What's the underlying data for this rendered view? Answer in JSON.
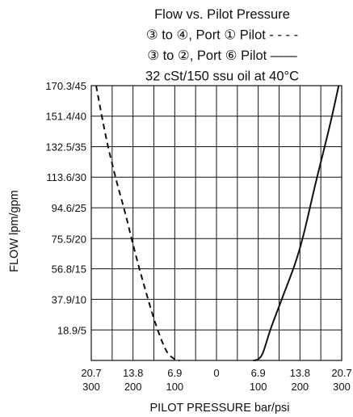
{
  "chart_data": {
    "type": "line",
    "title_lines": [
      "Flow vs. Pilot Pressure",
      "③ to ④, Port ① Pilot - - - -",
      "③ to ②, Port ⑥ Pilot ——",
      "32 cSt/150 ssu oil at 40°C"
    ],
    "xlabel": "PILOT PRESSURE bar/psi",
    "ylabel": "FLOW lpm/gpm",
    "x_ticks": [
      {
        "value": -20.7,
        "bar": "20.7",
        "psi": "300"
      },
      {
        "value": -13.8,
        "bar": "13.8",
        "psi": "200"
      },
      {
        "value": -6.9,
        "bar": "6.9",
        "psi": "100"
      },
      {
        "value": 0,
        "bar": "0",
        "psi": ""
      },
      {
        "value": 6.9,
        "bar": "6.9",
        "psi": "100"
      },
      {
        "value": 13.8,
        "bar": "13.8",
        "psi": "200"
      },
      {
        "value": 20.7,
        "bar": "20.7",
        "psi": "300"
      }
    ],
    "y_ticks": [
      {
        "value": 18.9,
        "label": "18.9/5"
      },
      {
        "value": 37.9,
        "label": "37.9/10"
      },
      {
        "value": 56.8,
        "label": "56.8/15"
      },
      {
        "value": 75.5,
        "label": "75.5/20"
      },
      {
        "value": 94.6,
        "label": "94.6/25"
      },
      {
        "value": 113.6,
        "label": "113.6/30"
      },
      {
        "value": 132.5,
        "label": "132.5/35"
      },
      {
        "value": 151.4,
        "label": "151.4/40"
      },
      {
        "value": 170.3,
        "label": "170.3/45"
      }
    ],
    "xlim": [
      -20.7,
      20.7
    ],
    "ylim": [
      0,
      170.3
    ],
    "grid": true,
    "series": [
      {
        "style": "dashed",
        "x": [
          -19.9,
          -18.3,
          -16.7,
          -15.0,
          -13.4,
          -11.7,
          -10.0,
          -8.3,
          -6.9,
          -6.1
        ],
        "y": [
          170.3,
          139.0,
          113.6,
          90.0,
          66.0,
          43.0,
          22.0,
          6.0,
          0.8,
          0.0
        ]
      },
      {
        "style": "solid",
        "x": [
          6.1,
          6.9,
          7.7,
          9.0,
          11.0,
          13.0,
          14.4,
          16.4,
          18.7,
          20.2
        ],
        "y": [
          0.0,
          0.8,
          5.0,
          20.0,
          40.0,
          60.0,
          78.0,
          110.0,
          145.0,
          170.3
        ]
      }
    ]
  }
}
